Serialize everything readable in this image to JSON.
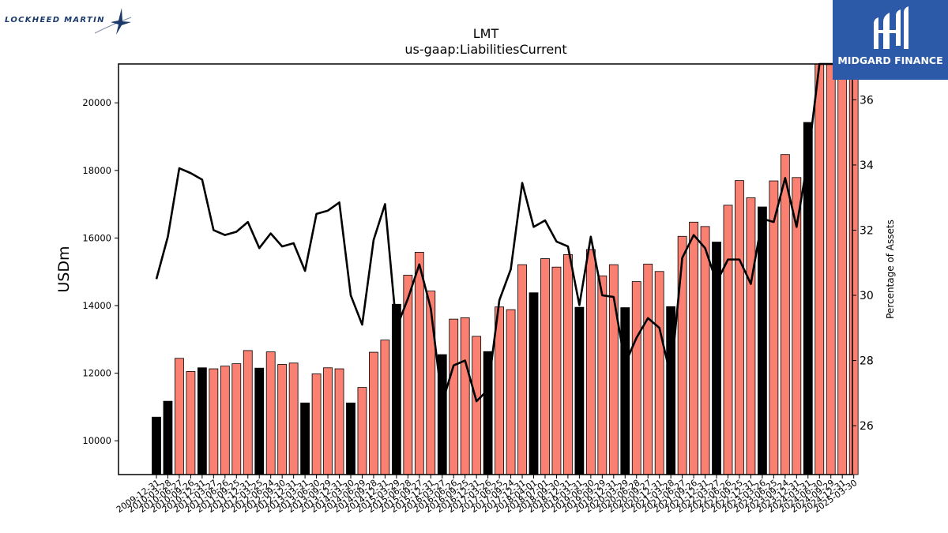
{
  "brand": {
    "company_logo_text": "LOCKHEED MARTIN",
    "publisher_logo_text": "MIDGARD FINANCE"
  },
  "chart_data": {
    "type": "bar",
    "title": "LMT",
    "subtitle": "us-gaap:LiabilitiesCurrent",
    "ylabel": "USDm",
    "y2label": "Percentage of Assets",
    "ylim": [
      9000,
      21150
    ],
    "y2lim": [
      24.5,
      37.1
    ],
    "yticks": [
      10000,
      12000,
      14000,
      16000,
      18000,
      20000
    ],
    "y2ticks": [
      26,
      28,
      30,
      32,
      34,
      36
    ],
    "categories": [
      "2009-12-31",
      "2010-03-28",
      "2010-06-27",
      "2010-09-26",
      "2010-12-31",
      "2011-03-27",
      "2011-06-26",
      "2011-09-25",
      "2011-12-31",
      "2012-03-25",
      "2012-06-24",
      "2012-09-30",
      "2012-12-31",
      "2013-03-31",
      "2013-06-30",
      "2013-09-29",
      "2013-12-31",
      "2014-03-30",
      "2014-06-29",
      "2014-09-28",
      "2014-12-31",
      "2015-03-29",
      "2015-06-28",
      "2015-09-27",
      "2015-12-31",
      "2016-03-27",
      "2016-06-26",
      "2016-09-25",
      "2016-12-31",
      "2017-03-26",
      "2017-06-25",
      "2017-09-24",
      "2017-12-31",
      "2018-04-01",
      "2018-07-01",
      "2018-09-30",
      "2018-12-31",
      "2019-03-31",
      "2019-06-30",
      "2019-09-29",
      "2019-12-31",
      "2020-03-29",
      "2020-06-28",
      "2020-09-27",
      "2020-12-31",
      "2021-03-28",
      "2021-06-27",
      "2021-09-26",
      "2021-12-31",
      "2022-03-27",
      "2022-06-26",
      "2022-09-25",
      "2022-12-31",
      "2023-03-26",
      "2023-06-25",
      "2023-09-24",
      "2023-12-31",
      "2024-03-31",
      "2024-06-30",
      "2024-09-29",
      "2024-12-31",
      "2025-03-30"
    ],
    "series": [
      {
        "values": [
          10700,
          11170,
          12440,
          12050,
          12160,
          12130,
          12210,
          12280,
          12670,
          12150,
          12630,
          12260,
          12300,
          11120,
          11980,
          12160,
          12130,
          11120,
          11580,
          12620,
          12980,
          14040,
          14900,
          15580,
          14430,
          12550,
          13600,
          13640,
          13090,
          12640,
          13960,
          13880,
          15210,
          14380,
          15390,
          15140,
          15510,
          13950,
          15660,
          14880,
          15210,
          13940,
          14710,
          15230,
          15010,
          13970,
          16050,
          16470,
          16340,
          15880,
          16970,
          17700,
          17190,
          16920,
          17690,
          18470,
          17790,
          19420,
          21150,
          21150,
          21150,
          21150
        ],
        "annual": [
          true,
          true,
          false,
          false,
          true,
          false,
          false,
          false,
          false,
          true,
          false,
          false,
          false,
          true,
          false,
          false,
          false,
          true,
          false,
          false,
          false,
          true,
          false,
          false,
          false,
          true,
          false,
          false,
          false,
          true,
          false,
          false,
          false,
          true,
          false,
          false,
          false,
          true,
          false,
          false,
          false,
          true,
          false,
          false,
          false,
          true,
          false,
          false,
          false,
          true,
          false,
          false,
          false,
          true,
          false,
          false,
          false,
          true,
          false,
          false,
          false,
          false
        ]
      },
      {
        "type": "line",
        "axis": "y2",
        "values": [
          30.5,
          31.8,
          33.9,
          33.75,
          33.55,
          32.0,
          31.85,
          31.95,
          32.25,
          31.45,
          31.9,
          31.5,
          31.6,
          30.75,
          32.5,
          32.6,
          32.85,
          30.0,
          29.1,
          31.7,
          32.8,
          29.0,
          29.9,
          30.95,
          29.6,
          26.7,
          27.85,
          28.0,
          26.75,
          27.1,
          29.85,
          30.8,
          33.45,
          32.1,
          32.3,
          31.65,
          31.5,
          29.7,
          31.8,
          30.0,
          29.95,
          27.9,
          28.7,
          29.3,
          29.0,
          27.5,
          31.15,
          31.85,
          31.45,
          30.4,
          31.1,
          31.1,
          30.35,
          32.35,
          32.25,
          33.6,
          32.1,
          34.2,
          37.1,
          37.1,
          37.1,
          37.1
        ]
      }
    ],
    "grid": false,
    "legend": "none",
    "colors": {
      "annual_bar": "#000000",
      "quarter_bar": "#fa8072",
      "line": "#000000"
    }
  }
}
